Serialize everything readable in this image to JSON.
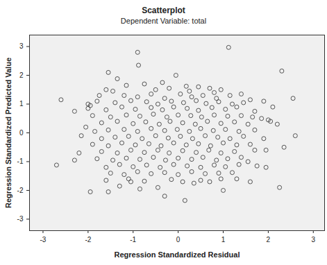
{
  "chart_data": {
    "type": "scatter",
    "title": "Scatterplot",
    "subtitle": "Dependent Variable: total",
    "x_label": "Regression Standardized Residual",
    "y_label": "Regression Standardized Predicted Value",
    "xlim": [
      -3.3,
      3.25
    ],
    "ylim": [
      -3.4,
      3.4
    ],
    "xticks": [
      -3,
      -2,
      -1,
      0,
      1,
      2,
      3
    ],
    "yticks": [
      -3,
      -2,
      -1,
      0,
      1,
      2,
      3
    ],
    "grid": false,
    "color": "#444444",
    "marker": "circle_open",
    "x": [
      1.12,
      -0.9,
      -0.88,
      2.3,
      -1.55,
      -1.35,
      -0.75,
      -0.35,
      -0.05,
      0.18,
      0.45,
      0.7,
      0.95,
      1.4,
      1.9,
      2.55,
      -2.6,
      -2.3,
      -2.0,
      -1.95,
      -1.75,
      -1.6,
      -1.45,
      -1.15,
      -2.7,
      -2.3,
      -1.95,
      -1.55,
      -1.6,
      -1.3,
      -1.05,
      -0.85,
      -0.45,
      -0.3,
      0.15,
      0.35,
      0.7,
      1.0,
      1.3,
      1.6,
      2.25,
      2.35,
      2.6,
      1.95,
      1.85,
      2.0,
      2.05,
      1.55,
      1.75,
      -1.2,
      -0.9,
      -0.6,
      -0.3,
      0.05,
      0.3,
      0.55,
      0.85,
      1.15,
      1.6,
      -1.8,
      -1.4,
      -1.05,
      -0.7,
      -0.45,
      -0.15,
      0.12,
      0.4,
      0.62,
      0.9,
      1.2,
      1.45,
      -2.0,
      -1.6,
      -1.25,
      -0.95,
      -0.6,
      -0.35,
      -0.1,
      0.2,
      0.45,
      0.75,
      1.05,
      1.3,
      1.7,
      2.1,
      -1.9,
      -1.5,
      -1.15,
      -0.85,
      -0.55,
      -0.25,
      0.0,
      0.28,
      0.52,
      0.8,
      1.1,
      1.4,
      1.65,
      -2.05,
      -1.7,
      -1.35,
      -1.0,
      -0.72,
      -0.42,
      -0.18,
      0.1,
      0.38,
      0.65,
      0.95,
      1.25,
      1.55,
      2.2,
      -1.85,
      -1.55,
      -1.2,
      -0.9,
      -0.6,
      -0.3,
      -0.02,
      0.25,
      0.5,
      0.78,
      1.05,
      1.35,
      1.7,
      -2.15,
      -1.7,
      -1.4,
      -1.1,
      -0.8,
      -0.5,
      -0.22,
      0.05,
      0.32,
      0.6,
      0.88,
      1.15,
      1.45,
      1.9,
      -1.9,
      -1.55,
      -1.25,
      -0.95,
      -0.65,
      -0.38,
      -0.1,
      0.18,
      0.45,
      0.72,
      1.0,
      1.3,
      1.6,
      -2.2,
      -1.7,
      -1.35,
      -1.05,
      -0.75,
      -0.45,
      -0.2,
      0.1,
      0.4,
      0.68,
      0.95,
      1.25,
      1.7,
      -1.8,
      -1.45,
      -1.15,
      -0.85,
      -0.55,
      -0.28,
      0.0,
      0.3,
      0.55,
      0.85,
      1.1,
      1.4,
      -1.6,
      -1.3,
      -1.0,
      -0.7,
      -0.4,
      -0.1,
      0.2,
      0.5,
      0.8,
      1.05,
      1.35,
      1.95,
      -1.5,
      -1.2,
      -0.9,
      -0.6,
      -0.3,
      0.0,
      0.3,
      0.6,
      0.9,
      1.2,
      -1.1,
      -0.75,
      -0.15,
      0.1,
      0.5,
      0.95,
      -0.5,
      -0.2,
      0.25,
      0.8
    ],
    "values": [
      2.97,
      2.8,
      2.35,
      2.15,
      2.1,
      1.88,
      1.7,
      1.75,
      2.0,
      1.62,
      1.6,
      1.55,
      1.5,
      1.35,
      1.1,
      1.2,
      1.15,
      0.75,
      1.0,
      0.95,
      1.3,
      1.5,
      1.45,
      1.65,
      -1.12,
      -0.95,
      -2.05,
      -2.05,
      -1.65,
      -1.85,
      -1.7,
      -1.95,
      -1.9,
      -2.2,
      -2.35,
      -1.75,
      -1.7,
      -2.0,
      -1.6,
      -1.7,
      -1.9,
      -0.5,
      -0.1,
      -0.6,
      0.5,
      0.45,
      0.4,
      -1.0,
      -1.15,
      1.3,
      1.25,
      1.35,
      1.2,
      1.35,
      1.25,
      1.3,
      1.2,
      1.3,
      1.15,
      1.1,
      1.05,
      1.12,
      1.08,
      1.0,
      1.1,
      1.05,
      1.12,
      1.02,
      1.08,
      1.0,
      1.05,
      0.85,
      0.8,
      0.9,
      0.82,
      0.88,
      0.8,
      0.9,
      0.85,
      0.78,
      0.88,
      0.82,
      0.9,
      0.75,
      0.9,
      0.6,
      0.55,
      0.62,
      0.58,
      0.65,
      0.55,
      0.62,
      0.6,
      0.55,
      0.62,
      0.58,
      0.6,
      0.55,
      0.2,
      0.35,
      0.4,
      0.32,
      0.38,
      0.3,
      0.4,
      0.35,
      0.3,
      0.4,
      0.33,
      0.38,
      0.3,
      0.3,
      0.05,
      0.1,
      0.12,
      0.05,
      0.15,
      0.08,
      0.12,
      0.05,
      0.15,
      0.08,
      0.12,
      0.05,
      0.1,
      -0.1,
      -0.2,
      -0.15,
      -0.12,
      -0.2,
      -0.1,
      -0.18,
      -0.12,
      -0.2,
      -0.1,
      -0.15,
      -0.2,
      -0.12,
      -0.2,
      -0.4,
      -0.45,
      -0.35,
      -0.42,
      -0.38,
      -0.45,
      -0.35,
      -0.42,
      -0.38,
      -0.45,
      -0.35,
      -0.42,
      -0.4,
      -0.7,
      -0.65,
      -0.7,
      -0.6,
      -0.68,
      -0.6,
      -0.7,
      -0.62,
      -0.68,
      -0.6,
      -0.7,
      -0.65,
      -0.6,
      -0.9,
      -0.95,
      -0.88,
      -0.92,
      -0.85,
      -0.95,
      -0.88,
      -0.92,
      -0.85,
      -0.95,
      -0.9,
      -0.85,
      -1.2,
      -1.1,
      -1.18,
      -1.12,
      -1.2,
      -1.1,
      -1.15,
      -1.2,
      -1.12,
      -1.18,
      -1.1,
      -1.2,
      -1.4,
      -1.45,
      -1.35,
      -1.42,
      -1.38,
      -1.45,
      -1.35,
      -1.42,
      -1.4,
      -1.38,
      -1.6,
      -1.68,
      -1.62,
      -1.7,
      -1.65,
      -1.6,
      1.5,
      1.55,
      1.45,
      1.4
    ]
  }
}
